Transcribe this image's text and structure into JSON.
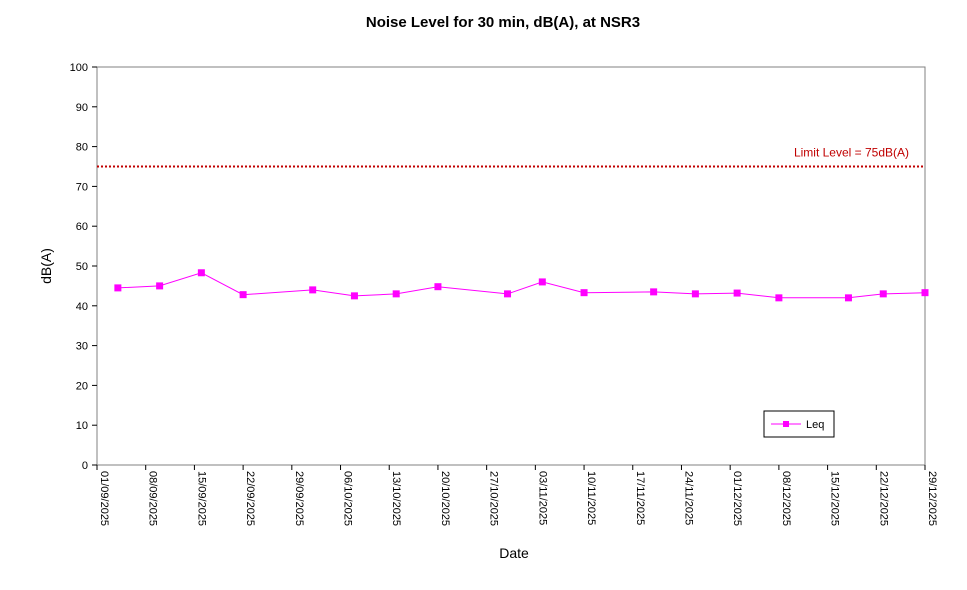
{
  "chart_data": {
    "type": "line",
    "title": "Noise Level for 30 min, dB(A), at NSR3",
    "xlabel": "Date",
    "ylabel": "dB(A)",
    "ylim": [
      0,
      100
    ],
    "yticks": [
      0,
      10,
      20,
      30,
      40,
      50,
      60,
      70,
      80,
      90,
      100
    ],
    "xlim": [
      "01/09/2025",
      "29/12/2025"
    ],
    "xticks": [
      "01/09/2025",
      "08/09/2025",
      "15/09/2025",
      "22/09/2025",
      "29/09/2025",
      "06/10/2025",
      "13/10/2025",
      "20/10/2025",
      "27/10/2025",
      "03/11/2025",
      "10/11/2025",
      "17/11/2025",
      "24/11/2025",
      "01/12/2025",
      "08/12/2025",
      "15/12/2025",
      "22/12/2025",
      "29/12/2025"
    ],
    "grid": false,
    "legend_position": "bottom-right",
    "series": [
      {
        "name": "Leq",
        "color": "#ff00ff",
        "marker": "square",
        "x": [
          "04/09/2025",
          "10/09/2025",
          "16/09/2025",
          "22/09/2025",
          "02/10/2025",
          "08/10/2025",
          "14/10/2025",
          "20/10/2025",
          "30/10/2025",
          "04/11/2025",
          "10/11/2025",
          "20/11/2025",
          "26/11/2025",
          "02/12/2025",
          "08/12/2025",
          "18/12/2025",
          "23/12/2025",
          "29/12/2025"
        ],
        "y": [
          44.5,
          45.0,
          48.3,
          42.8,
          44.0,
          42.5,
          43.0,
          44.8,
          43.0,
          46.0,
          43.3,
          43.5,
          43.0,
          43.2,
          42.0,
          42.0,
          43.0,
          43.3
        ]
      }
    ],
    "reference_lines": [
      {
        "label": "Limit Level  = 75dB(A)",
        "value": 75,
        "color": "#c00000",
        "style": "dotted"
      }
    ]
  }
}
